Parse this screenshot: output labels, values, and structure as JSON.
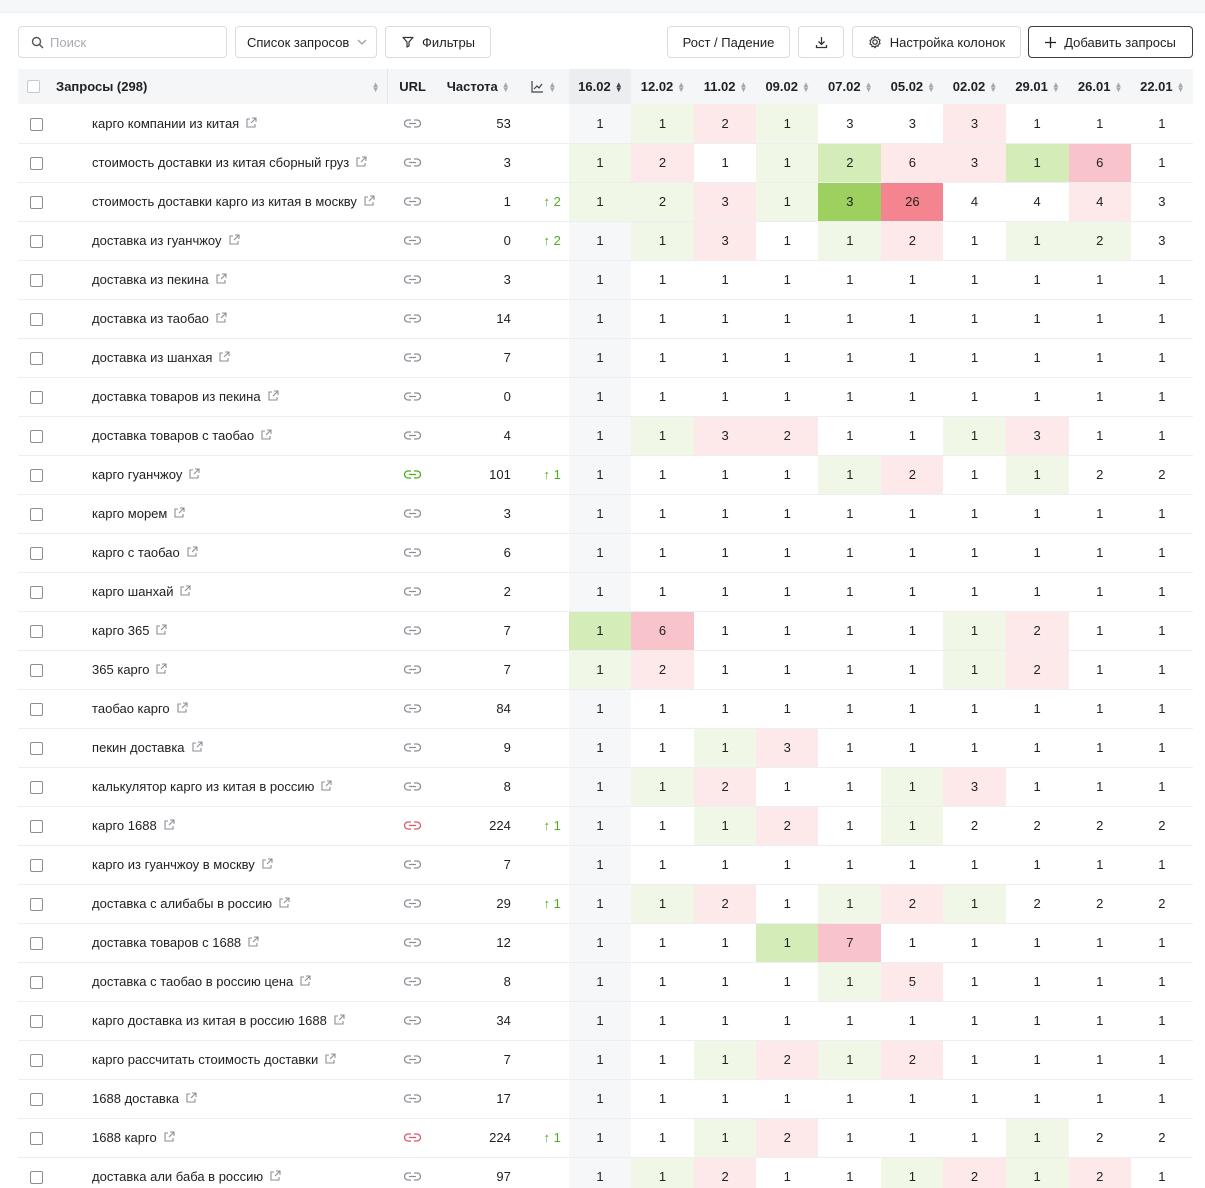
{
  "toolbar": {
    "search_placeholder": "Поиск",
    "select_label": "Список запросов",
    "filters_label": "Фильтры",
    "growth_label": "Рост / Падение",
    "column_settings_label": "Настройка колонок",
    "add_queries_label": "Добавить запросы"
  },
  "table": {
    "headers": {
      "queries": "Запросы (298)",
      "url": "URL",
      "frequency": "Частота"
    },
    "dates": [
      "16.02",
      "12.02",
      "11.02",
      "09.02",
      "07.02",
      "05.02",
      "02.02",
      "29.01",
      "26.01",
      "22.01"
    ],
    "rows": [
      {
        "q": "карго компании из китая",
        "link": "gray",
        "freq": "53",
        "dyn": "",
        "pos": [
          "1",
          "1",
          "2",
          "1",
          "3",
          "3",
          "3",
          "1",
          "1",
          "1"
        ],
        "hl": [
          "",
          "g1",
          "r1",
          "g1",
          "",
          "",
          "r1",
          "",
          "",
          ""
        ]
      },
      {
        "q": "стоимость доставки из китая сборный груз",
        "link": "gray",
        "freq": "3",
        "dyn": "",
        "pos": [
          "1",
          "2",
          "1",
          "1",
          "2",
          "6",
          "3",
          "1",
          "6",
          "1"
        ],
        "hl": [
          "g1",
          "r1",
          "",
          "g1",
          "g2",
          "r1",
          "r1",
          "g2",
          "r2",
          ""
        ]
      },
      {
        "q": "стоимость доставки карго из китая в москву",
        "link": "gray",
        "freq": "1",
        "dyn": "↑ 2",
        "pos": [
          "1",
          "2",
          "3",
          "1",
          "3",
          "26",
          "4",
          "4",
          "4",
          "3"
        ],
        "hl": [
          "g1",
          "g1",
          "r1",
          "g1",
          "g3",
          "r3",
          "",
          "",
          "r1",
          ""
        ]
      },
      {
        "q": "доставка из гуанчжоу",
        "link": "gray",
        "freq": "0",
        "dyn": "↑ 2",
        "pos": [
          "1",
          "1",
          "3",
          "1",
          "1",
          "2",
          "1",
          "1",
          "2",
          "3"
        ],
        "hl": [
          "",
          "g1",
          "r1",
          "",
          "g1",
          "r1",
          "",
          "g1",
          "g1",
          ""
        ]
      },
      {
        "q": "доставка из пекина",
        "link": "gray",
        "freq": "3",
        "dyn": "",
        "pos": [
          "1",
          "1",
          "1",
          "1",
          "1",
          "1",
          "1",
          "1",
          "1",
          "1"
        ],
        "hl": [
          "",
          "",
          "",
          "",
          "",
          "",
          "",
          "",
          "",
          ""
        ]
      },
      {
        "q": "доставка из таобао",
        "link": "gray",
        "freq": "14",
        "dyn": "",
        "pos": [
          "1",
          "1",
          "1",
          "1",
          "1",
          "1",
          "1",
          "1",
          "1",
          "1"
        ],
        "hl": [
          "",
          "",
          "",
          "",
          "",
          "",
          "",
          "",
          "",
          ""
        ]
      },
      {
        "q": "доставка из шанхая",
        "link": "gray",
        "freq": "7",
        "dyn": "",
        "pos": [
          "1",
          "1",
          "1",
          "1",
          "1",
          "1",
          "1",
          "1",
          "1",
          "1"
        ],
        "hl": [
          "",
          "",
          "",
          "",
          "",
          "",
          "",
          "",
          "",
          ""
        ]
      },
      {
        "q": "доставка товаров из пекина",
        "link": "gray",
        "freq": "0",
        "dyn": "",
        "pos": [
          "1",
          "1",
          "1",
          "1",
          "1",
          "1",
          "1",
          "1",
          "1",
          "1"
        ],
        "hl": [
          "",
          "",
          "",
          "",
          "",
          "",
          "",
          "",
          "",
          ""
        ]
      },
      {
        "q": "доставка товаров с таобао",
        "link": "gray",
        "freq": "4",
        "dyn": "",
        "pos": [
          "1",
          "1",
          "3",
          "2",
          "1",
          "1",
          "1",
          "3",
          "1",
          "1"
        ],
        "hl": [
          "",
          "g1",
          "r1",
          "r1",
          "",
          "",
          "g1",
          "r1",
          "",
          ""
        ]
      },
      {
        "q": "карго гуанчжоу",
        "link": "green",
        "freq": "101",
        "dyn": "↑ 1",
        "pos": [
          "1",
          "1",
          "1",
          "1",
          "1",
          "2",
          "1",
          "1",
          "2",
          "2"
        ],
        "hl": [
          "",
          "",
          "",
          "",
          "g1",
          "r1",
          "",
          "g1",
          "",
          ""
        ]
      },
      {
        "q": "карго морем",
        "link": "gray",
        "freq": "3",
        "dyn": "",
        "pos": [
          "1",
          "1",
          "1",
          "1",
          "1",
          "1",
          "1",
          "1",
          "1",
          "1"
        ],
        "hl": [
          "",
          "",
          "",
          "",
          "",
          "",
          "",
          "",
          "",
          ""
        ]
      },
      {
        "q": "карго с таобао",
        "link": "gray",
        "freq": "6",
        "dyn": "",
        "pos": [
          "1",
          "1",
          "1",
          "1",
          "1",
          "1",
          "1",
          "1",
          "1",
          "1"
        ],
        "hl": [
          "",
          "",
          "",
          "",
          "",
          "",
          "",
          "",
          "",
          ""
        ]
      },
      {
        "q": "карго шанхай",
        "link": "gray",
        "freq": "2",
        "dyn": "",
        "pos": [
          "1",
          "1",
          "1",
          "1",
          "1",
          "1",
          "1",
          "1",
          "1",
          "1"
        ],
        "hl": [
          "",
          "",
          "",
          "",
          "",
          "",
          "",
          "",
          "",
          ""
        ]
      },
      {
        "q": "карго 365",
        "link": "gray",
        "freq": "7",
        "dyn": "",
        "pos": [
          "1",
          "6",
          "1",
          "1",
          "1",
          "1",
          "1",
          "2",
          "1",
          "1"
        ],
        "hl": [
          "g2",
          "r2",
          "",
          "",
          "",
          "",
          "g1",
          "r1",
          "",
          ""
        ]
      },
      {
        "q": "365 карго",
        "link": "gray",
        "freq": "7",
        "dyn": "",
        "pos": [
          "1",
          "2",
          "1",
          "1",
          "1",
          "1",
          "1",
          "2",
          "1",
          "1"
        ],
        "hl": [
          "g1",
          "r1",
          "",
          "",
          "",
          "",
          "g1",
          "r1",
          "",
          ""
        ]
      },
      {
        "q": "таобао карго",
        "link": "gray",
        "freq": "84",
        "dyn": "",
        "pos": [
          "1",
          "1",
          "1",
          "1",
          "1",
          "1",
          "1",
          "1",
          "1",
          "1"
        ],
        "hl": [
          "",
          "",
          "",
          "",
          "",
          "",
          "",
          "",
          "",
          ""
        ]
      },
      {
        "q": "пекин доставка",
        "link": "gray",
        "freq": "9",
        "dyn": "",
        "pos": [
          "1",
          "1",
          "1",
          "3",
          "1",
          "1",
          "1",
          "1",
          "1",
          "1"
        ],
        "hl": [
          "",
          "",
          "g1",
          "r1",
          "",
          "",
          "",
          "",
          "",
          ""
        ]
      },
      {
        "q": "калькулятор карго из китая в россию",
        "link": "gray",
        "freq": "8",
        "dyn": "",
        "pos": [
          "1",
          "1",
          "2",
          "1",
          "1",
          "1",
          "3",
          "1",
          "1",
          "1"
        ],
        "hl": [
          "",
          "g1",
          "r1",
          "",
          "",
          "g1",
          "r1",
          "",
          "",
          ""
        ]
      },
      {
        "q": "карго 1688",
        "link": "red",
        "freq": "224",
        "dyn": "↑ 1",
        "pos": [
          "1",
          "1",
          "1",
          "2",
          "1",
          "1",
          "2",
          "2",
          "2",
          "2"
        ],
        "hl": [
          "",
          "",
          "g1",
          "r1",
          "",
          "g1",
          "",
          "",
          "",
          ""
        ]
      },
      {
        "q": "карго из гуанчжоу в москву",
        "link": "gray",
        "freq": "7",
        "dyn": "",
        "pos": [
          "1",
          "1",
          "1",
          "1",
          "1",
          "1",
          "1",
          "1",
          "1",
          "1"
        ],
        "hl": [
          "",
          "",
          "",
          "",
          "",
          "",
          "",
          "",
          "",
          ""
        ]
      },
      {
        "q": "доставка с алибабы в россию",
        "link": "gray",
        "freq": "29",
        "dyn": "↑ 1",
        "pos": [
          "1",
          "1",
          "2",
          "1",
          "1",
          "2",
          "1",
          "2",
          "2",
          "2"
        ],
        "hl": [
          "",
          "g1",
          "r1",
          "",
          "g1",
          "r1",
          "g1",
          "",
          "",
          ""
        ]
      },
      {
        "q": "доставка товаров с 1688",
        "link": "gray",
        "freq": "12",
        "dyn": "",
        "pos": [
          "1",
          "1",
          "1",
          "1",
          "7",
          "1",
          "1",
          "1",
          "1",
          "1"
        ],
        "hl": [
          "",
          "",
          "",
          "g2",
          "r2",
          "",
          "",
          "",
          "",
          ""
        ]
      },
      {
        "q": "доставка с таобао в россию цена",
        "link": "gray",
        "freq": "8",
        "dyn": "",
        "pos": [
          "1",
          "1",
          "1",
          "1",
          "1",
          "5",
          "1",
          "1",
          "1",
          "1"
        ],
        "hl": [
          "",
          "",
          "",
          "",
          "g1",
          "r1",
          "",
          "",
          "",
          ""
        ]
      },
      {
        "q": "карго доставка из китая в россию 1688",
        "link": "gray",
        "freq": "34",
        "dyn": "",
        "pos": [
          "1",
          "1",
          "1",
          "1",
          "1",
          "1",
          "1",
          "1",
          "1",
          "1"
        ],
        "hl": [
          "",
          "",
          "",
          "",
          "",
          "",
          "",
          "",
          "",
          ""
        ]
      },
      {
        "q": "карго рассчитать стоимость доставки",
        "link": "gray",
        "freq": "7",
        "dyn": "",
        "pos": [
          "1",
          "1",
          "1",
          "2",
          "1",
          "2",
          "1",
          "1",
          "1",
          "1"
        ],
        "hl": [
          "",
          "",
          "g1",
          "r1",
          "g1",
          "r1",
          "",
          "",
          "",
          ""
        ]
      },
      {
        "q": "1688 доставка",
        "link": "gray",
        "freq": "17",
        "dyn": "",
        "pos": [
          "1",
          "1",
          "1",
          "1",
          "1",
          "1",
          "1",
          "1",
          "1",
          "1"
        ],
        "hl": [
          "",
          "",
          "",
          "",
          "",
          "",
          "",
          "",
          "",
          ""
        ]
      },
      {
        "q": "1688 карго",
        "link": "red",
        "freq": "224",
        "dyn": "↑ 1",
        "pos": [
          "1",
          "1",
          "1",
          "2",
          "1",
          "1",
          "1",
          "1",
          "2",
          "2"
        ],
        "hl": [
          "",
          "",
          "g1",
          "r1",
          "",
          "",
          "",
          "g1",
          "",
          ""
        ]
      },
      {
        "q": "доставка али баба в россию",
        "link": "gray",
        "freq": "97",
        "dyn": "",
        "pos": [
          "1",
          "1",
          "2",
          "1",
          "1",
          "1",
          "2",
          "1",
          "2",
          "1"
        ],
        "hl": [
          "",
          "g1",
          "r1",
          "",
          "",
          "g1",
          "r1",
          "g1",
          "r1",
          ""
        ]
      }
    ]
  },
  "colors": {
    "accent_green": "#4cae1c",
    "link_gray": "#8a8f96",
    "link_green": "#4cae1c",
    "link_red": "#e05565"
  }
}
